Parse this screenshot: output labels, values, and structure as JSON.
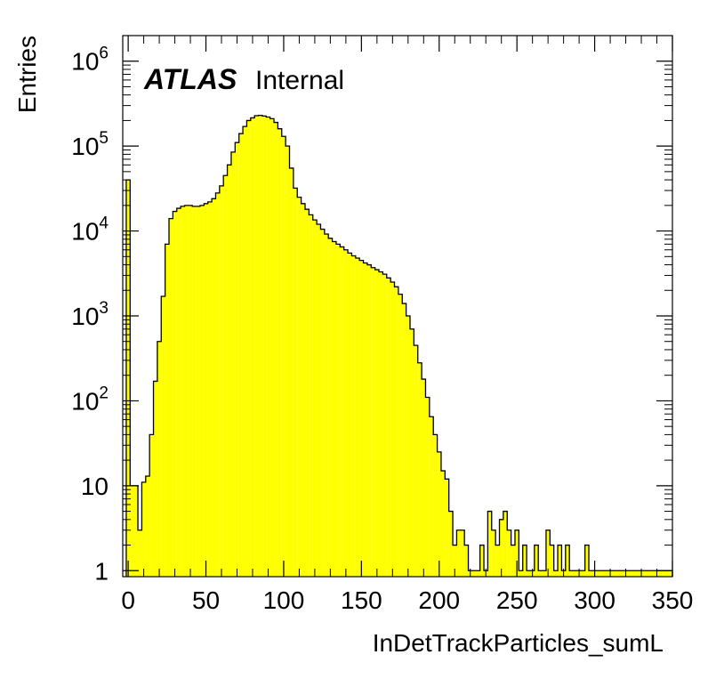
{
  "chart_data": {
    "type": "histogram",
    "title": "",
    "xlabel": "InDetTrackParticles_sumL",
    "ylabel": "Entries",
    "label_bold": "ATLAS",
    "label_text": "Internal",
    "xlim": [
      -3.5,
      350
    ],
    "ylim": [
      0.85,
      2000000
    ],
    "log_y": true,
    "bin_width": 2.5,
    "fill_color": "#ffff00",
    "line_color": "#000000",
    "x_ticks": [
      0,
      50,
      100,
      150,
      200,
      250,
      300,
      350
    ],
    "x_tick_labels": [
      "0",
      "50",
      "100",
      "150",
      "200",
      "250",
      "300",
      "350"
    ],
    "y_ticks": [
      1,
      10,
      100,
      1000,
      10000,
      100000,
      1000000
    ],
    "y_tick_labels": [
      {
        "base": "1",
        "exp": ""
      },
      {
        "base": "10",
        "exp": ""
      },
      {
        "base": "10",
        "exp": "2"
      },
      {
        "base": "10",
        "exp": "3"
      },
      {
        "base": "10",
        "exp": "4"
      },
      {
        "base": "10",
        "exp": "5"
      },
      {
        "base": "10",
        "exp": "6"
      }
    ],
    "bin_edges_start": -1.25,
    "values": [
      40000,
      10,
      10,
      3,
      11,
      13,
      40,
      170,
      500,
      1700,
      7000,
      14000,
      17000,
      18500,
      19500,
      20000,
      20000,
      19500,
      19500,
      20000,
      21000,
      22000,
      24000,
      28000,
      34000,
      45000,
      60000,
      85000,
      110000,
      140000,
      170000,
      200000,
      215000,
      228000,
      230000,
      226000,
      220000,
      210000,
      190000,
      160000,
      130000,
      100000,
      55000,
      32000,
      25000,
      21000,
      18000,
      15500,
      13500,
      12000,
      10500,
      9200,
      8200,
      7500,
      7000,
      6500,
      6000,
      5500,
      5100,
      4800,
      4500,
      4200,
      4000,
      3700,
      3500,
      3300,
      3100,
      2800,
      2500,
      2200,
      1800,
      1400,
      1000,
      700,
      450,
      280,
      180,
      110,
      65,
      40,
      25,
      15,
      12,
      5,
      2,
      3,
      3,
      2,
      1,
      1,
      1,
      2,
      1,
      5,
      3,
      2,
      4,
      5,
      3,
      2,
      3,
      1,
      2,
      1,
      1,
      2,
      1,
      1,
      3,
      2,
      1,
      2,
      1,
      2,
      1,
      1,
      1,
      1,
      2,
      1,
      1,
      1,
      1,
      1,
      1,
      1,
      1,
      1,
      1,
      1,
      1,
      1,
      1,
      1,
      1,
      1,
      1,
      1,
      1,
      1,
      1,
      1
    ]
  }
}
